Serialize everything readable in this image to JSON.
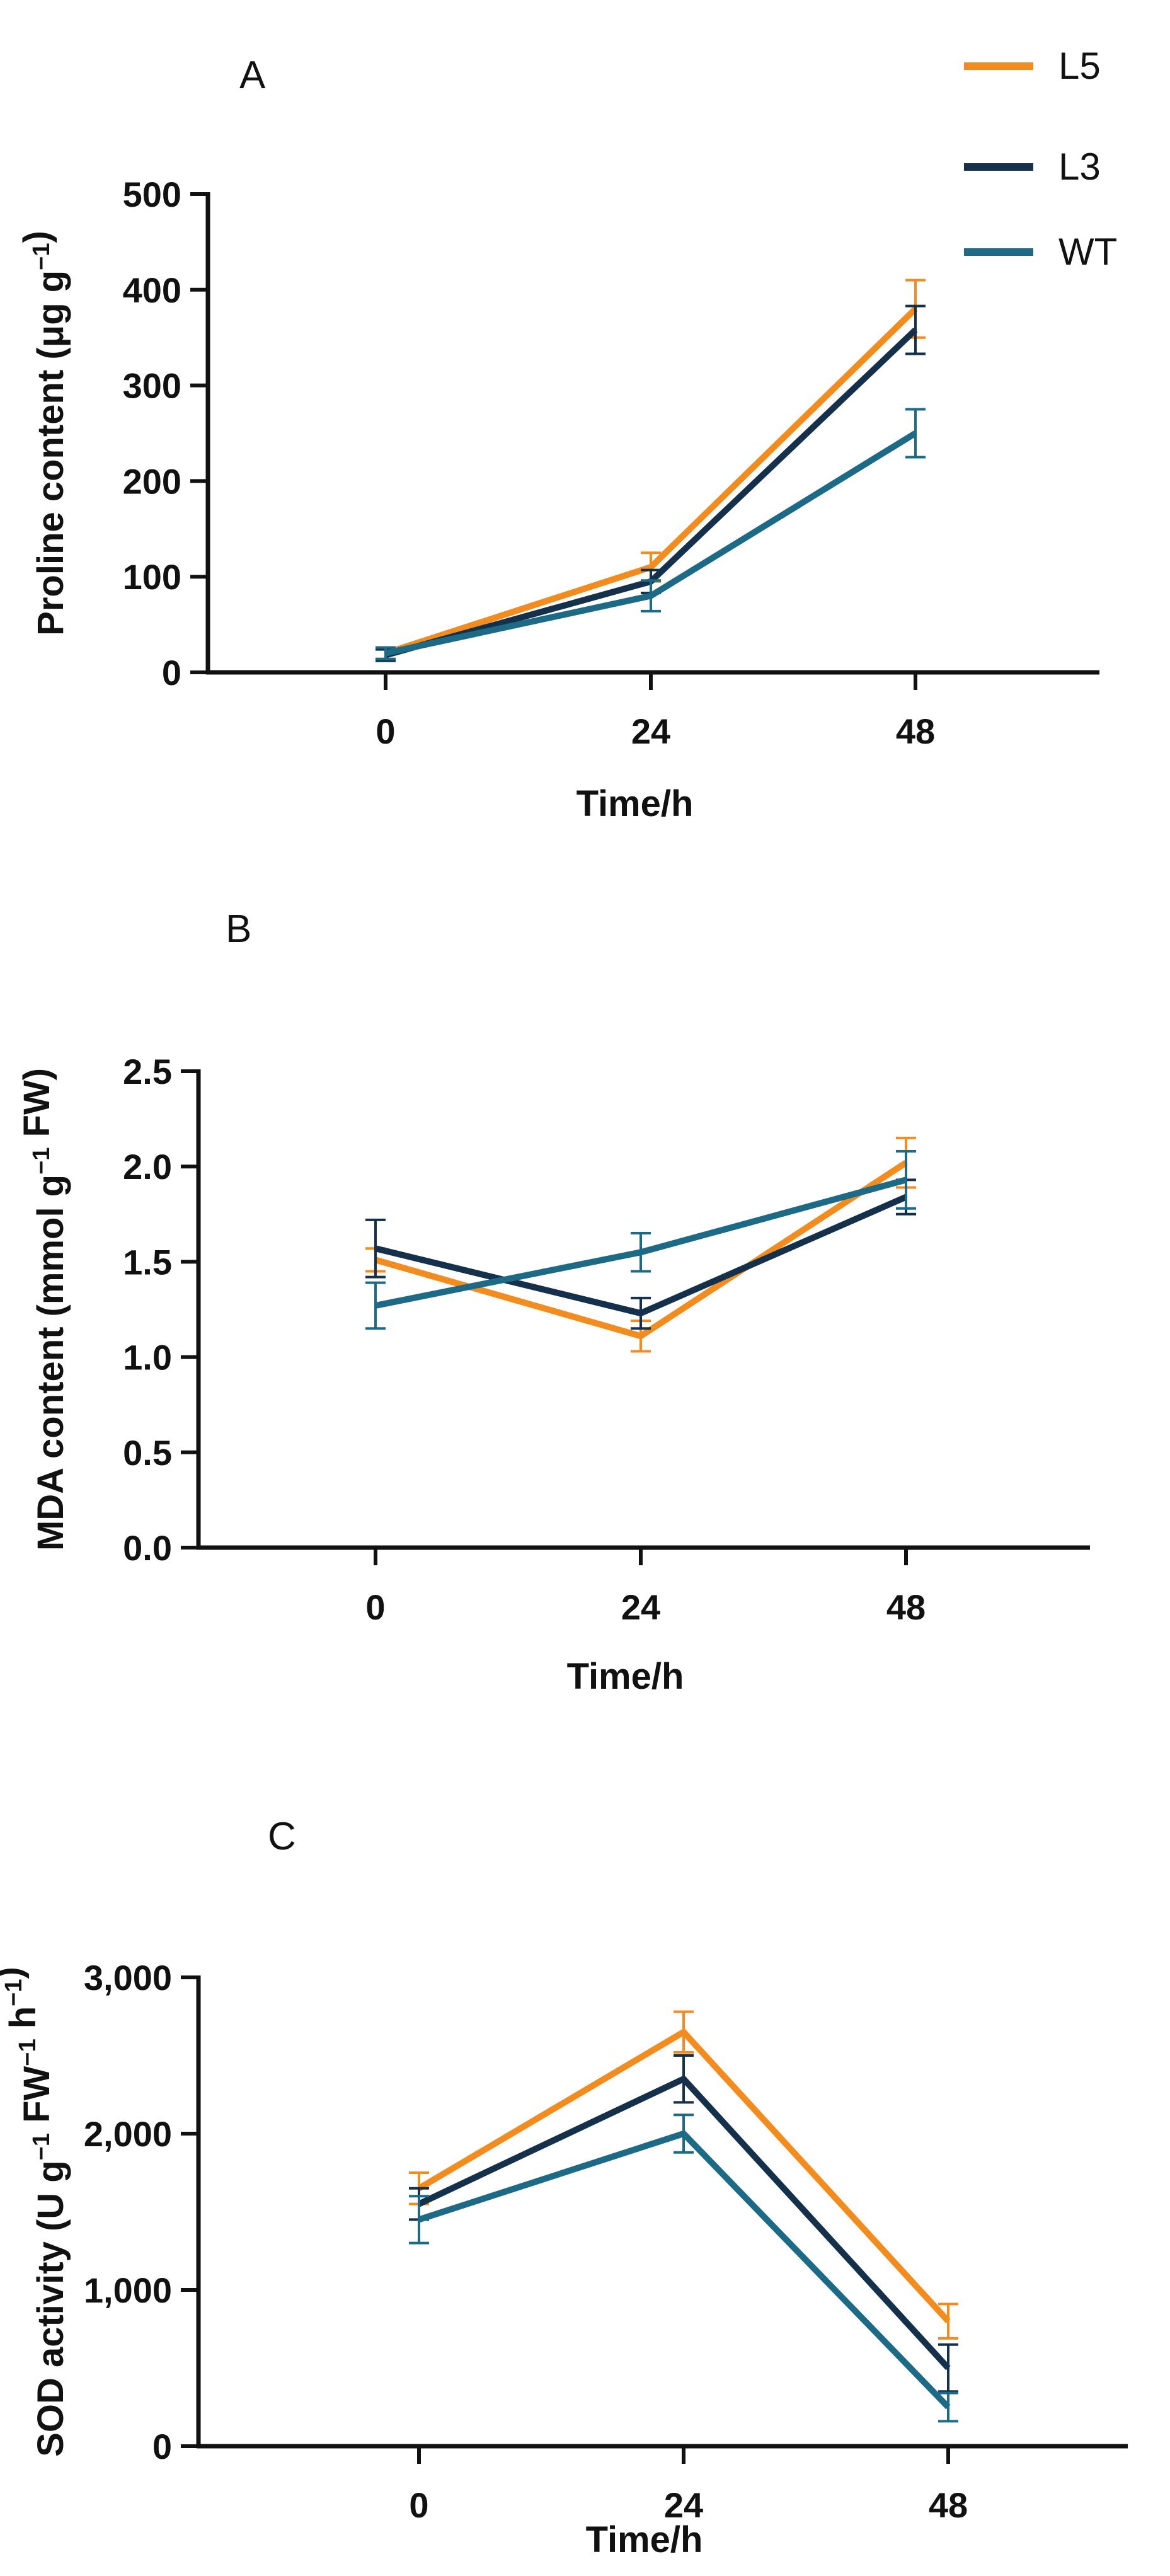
{
  "colors": {
    "L5": "#F28C1E",
    "L3": "#14304A",
    "WT": "#1D6A86",
    "axis": "#111111"
  },
  "legend": [
    {
      "name": "L5",
      "color": "#F28C1E"
    },
    {
      "name": "L3",
      "color": "#14304A"
    },
    {
      "name": "WT",
      "color": "#1D6A86"
    }
  ],
  "chart_data": [
    {
      "type": "line",
      "panel_label": "A",
      "x": [
        0,
        24,
        48
      ],
      "tick_labels_x": [
        "0",
        "24",
        "48"
      ],
      "xlabel": "Time/h",
      "ylabel": {
        "main": "Proline content (μg g",
        "sup": "−1",
        "end": ")"
      },
      "ylim": [
        0,
        500
      ],
      "y_ticks": [
        0,
        100,
        200,
        300,
        400,
        500
      ],
      "tick_labels_y": [
        "0",
        "100",
        "200",
        "300",
        "400",
        "500"
      ],
      "series": [
        {
          "name": "L5",
          "values": [
            20,
            110,
            380
          ],
          "errors": [
            6,
            15,
            30
          ]
        },
        {
          "name": "L3",
          "values": [
            18,
            95,
            358
          ],
          "errors": [
            6,
            12,
            25
          ]
        },
        {
          "name": "WT",
          "values": [
            20,
            80,
            250
          ],
          "errors": [
            6,
            16,
            25
          ]
        }
      ]
    },
    {
      "type": "line",
      "panel_label": "B",
      "x": [
        0,
        24,
        48
      ],
      "tick_labels_x": [
        "0",
        "24",
        "48"
      ],
      "xlabel": "Time/h",
      "ylabel": {
        "main": "MDA content (mmol g",
        "sup": "−1",
        "end": " FW)"
      },
      "ylim": [
        0,
        2.5
      ],
      "y_ticks": [
        0,
        0.5,
        1.0,
        1.5,
        2.0,
        2.5
      ],
      "tick_labels_y": [
        "0.0",
        "0.5",
        "1.0",
        "1.5",
        "2.0",
        "2.5"
      ],
      "series": [
        {
          "name": "L5",
          "values": [
            1.51,
            1.11,
            2.02
          ],
          "errors": [
            0.06,
            0.08,
            0.13
          ]
        },
        {
          "name": "L3",
          "values": [
            1.57,
            1.23,
            1.84
          ],
          "errors": [
            0.15,
            0.08,
            0.09
          ]
        },
        {
          "name": "WT",
          "values": [
            1.27,
            1.55,
            1.93
          ],
          "errors": [
            0.12,
            0.1,
            0.15
          ]
        }
      ]
    },
    {
      "type": "line",
      "panel_label": "C",
      "x": [
        0,
        24,
        48
      ],
      "tick_labels_x": [
        "0",
        "24",
        "48"
      ],
      "xlabel": "Time/h",
      "ylabel": {
        "main": "SOD activity (U g",
        "sup": "−1",
        "mid": " FW",
        "sup2": "−1",
        "end2": " h",
        "sup3": "−1",
        "end": ")"
      },
      "ylim": [
        0,
        3000
      ],
      "y_ticks": [
        0,
        1000,
        2000,
        3000
      ],
      "tick_labels_y": [
        "0",
        "1,000",
        "2,000",
        "3,000"
      ],
      "series": [
        {
          "name": "L5",
          "values": [
            1650,
            2650,
            800
          ],
          "errors": [
            100,
            130,
            110
          ]
        },
        {
          "name": "L3",
          "values": [
            1550,
            2350,
            500
          ],
          "errors": [
            100,
            150,
            150
          ]
        },
        {
          "name": "WT",
          "values": [
            1450,
            2000,
            250
          ],
          "errors": [
            150,
            120,
            90
          ]
        }
      ]
    }
  ]
}
